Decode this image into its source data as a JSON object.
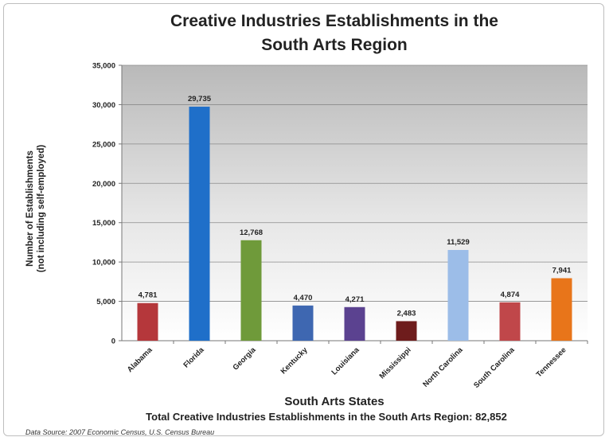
{
  "chart_data": {
    "type": "bar",
    "title": "Creative Industries Establishments in the South Arts Region",
    "title_lines": [
      "Creative Industries Establishments in the",
      "South Arts Region"
    ],
    "xlabel": "South Arts States",
    "ylabel_lines": [
      "Number of Establishments",
      "(not including self-employed)"
    ],
    "ylim": [
      0,
      35000
    ],
    "yticks": [
      0,
      5000,
      10000,
      15000,
      20000,
      25000,
      30000,
      35000
    ],
    "ytick_labels": [
      "0",
      "5,000",
      "10,000",
      "15,000",
      "20,000",
      "25,000",
      "30,000",
      "35,000"
    ],
    "grid": true,
    "categories": [
      "Alabama",
      "Florida",
      "Georgia",
      "Kentucky",
      "Louisiana",
      "Mississippi",
      "North Carolina",
      "South Carolina",
      "Tennessee"
    ],
    "values": [
      4781,
      29735,
      12768,
      4470,
      4271,
      2483,
      11529,
      4874,
      7941
    ],
    "data_labels": [
      "4,781",
      "29,735",
      "12,768",
      "4,470",
      "4,271",
      "2,483",
      "11,529",
      "4,874",
      "7,941"
    ],
    "bar_colors": [
      "#b5373b",
      "#1f6fc9",
      "#6f9a3a",
      "#3e67b1",
      "#5b4290",
      "#6e1c1c",
      "#9cbde8",
      "#c0474a",
      "#e8751a"
    ],
    "footer": {
      "total": "Total Creative Industries Establishments in the South Arts Region: 82,852",
      "source": "Data Source: 2007 Economic Census, U.S. Census Bureau"
    }
  }
}
